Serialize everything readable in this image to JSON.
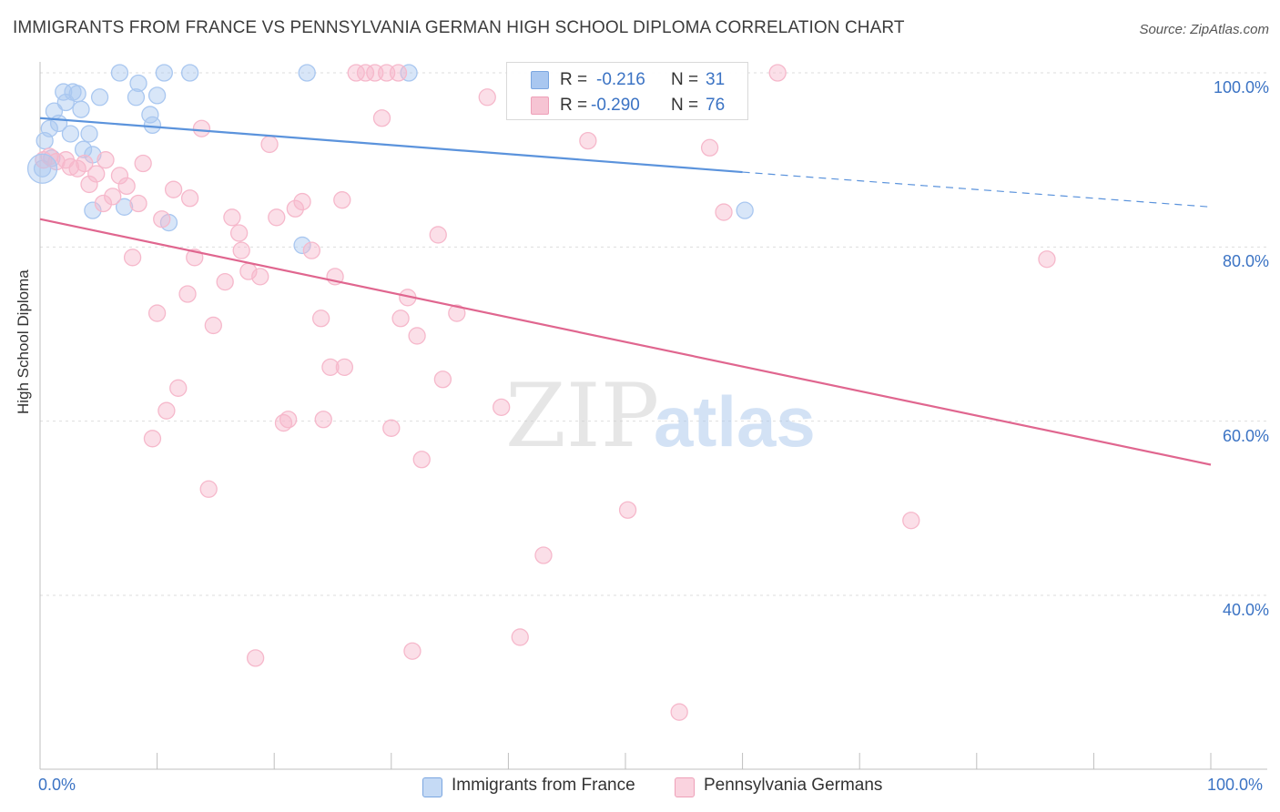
{
  "header": {
    "title": "IMMIGRANTS FROM FRANCE VS PENNSYLVANIA GERMAN HIGH SCHOOL DIPLOMA CORRELATION CHART",
    "source": "Source: ZipAtlas.com"
  },
  "watermark": {
    "zip": "ZIP",
    "atlas": "atlas"
  },
  "stats": {
    "rows": [
      {
        "r_label": "R =",
        "r_value": "-0.216",
        "n_label": "N =",
        "n_value": "31",
        "color": "#a9c7f0"
      },
      {
        "r_label": "R =",
        "r_value": "-0.290",
        "n_label": "N =",
        "n_value": "76",
        "color": "#f6b8cb"
      }
    ]
  },
  "legend": {
    "items": [
      {
        "label": "Immigrants from France",
        "color": "#a9c7f0"
      },
      {
        "label": "Pennsylvania Germans",
        "color": "#f6b8cb"
      }
    ]
  },
  "chart_data": {
    "type": "scatter",
    "title": "IMMIGRANTS FROM FRANCE VS PENNSYLVANIA GERMAN HIGH SCHOOL DIPLOMA CORRELATION CHART",
    "xlabel": "",
    "ylabel": "High School Diploma",
    "xlim": [
      0,
      100
    ],
    "ylim": [
      20,
      102
    ],
    "x_tick_labels": [
      "0.0%",
      "100.0%"
    ],
    "y_ticks": [
      40,
      60,
      80,
      100
    ],
    "y_tick_labels": [
      "40.0%",
      "60.0%",
      "80.0%",
      "100.0%"
    ],
    "grid": true,
    "legend_position": "bottom-center",
    "series": [
      {
        "name": "Immigrants from France",
        "color": "#5b93dc",
        "fill": "#a9c7f0",
        "trend": {
          "x0": 0,
          "y0": 94.8,
          "x1": 60,
          "y1": 88.6,
          "dash_to_x": 100,
          "dash_to_y": 84.6
        },
        "points": [
          [
            0.2,
            89.0
          ],
          [
            0.4,
            92.2
          ],
          [
            0.8,
            93.6
          ],
          [
            1.2,
            95.6
          ],
          [
            1.6,
            94.2
          ],
          [
            2.0,
            97.8
          ],
          [
            2.2,
            96.6
          ],
          [
            2.6,
            93.0
          ],
          [
            2.8,
            97.8
          ],
          [
            3.2,
            97.6
          ],
          [
            3.5,
            95.8
          ],
          [
            3.7,
            91.2
          ],
          [
            4.2,
            93.0
          ],
          [
            4.5,
            90.6
          ],
          [
            4.5,
            84.2
          ],
          [
            5.1,
            97.2
          ],
          [
            6.8,
            100.0
          ],
          [
            7.2,
            84.6
          ],
          [
            8.2,
            97.2
          ],
          [
            8.4,
            98.8
          ],
          [
            9.4,
            95.2
          ],
          [
            9.6,
            94.0
          ],
          [
            10.0,
            97.4
          ],
          [
            10.6,
            100.0
          ],
          [
            11.0,
            82.8
          ],
          [
            12.8,
            100.0
          ],
          [
            22.8,
            100.0
          ],
          [
            22.4,
            80.2
          ],
          [
            31.5,
            100.0
          ],
          [
            60.2,
            84.2
          ],
          [
            1.0,
            90.2
          ]
        ]
      },
      {
        "name": "Pennsylvania Germans",
        "color": "#e0668f",
        "fill": "#f6b8cb",
        "trend": {
          "x0": 0,
          "y0": 83.2,
          "x1": 100,
          "y1": 55.0
        },
        "points": [
          [
            0.3,
            90.0
          ],
          [
            0.8,
            90.4
          ],
          [
            1.4,
            89.8
          ],
          [
            2.2,
            90.0
          ],
          [
            2.6,
            89.2
          ],
          [
            3.2,
            89.0
          ],
          [
            3.8,
            89.6
          ],
          [
            4.2,
            87.2
          ],
          [
            4.8,
            88.4
          ],
          [
            5.4,
            85.0
          ],
          [
            5.6,
            90.0
          ],
          [
            6.2,
            85.8
          ],
          [
            6.8,
            88.2
          ],
          [
            7.4,
            87.0
          ],
          [
            7.9,
            78.8
          ],
          [
            8.4,
            85.0
          ],
          [
            8.8,
            89.6
          ],
          [
            9.6,
            58.0
          ],
          [
            10.0,
            72.4
          ],
          [
            10.4,
            83.2
          ],
          [
            10.8,
            61.2
          ],
          [
            11.4,
            86.6
          ],
          [
            11.8,
            63.8
          ],
          [
            12.6,
            74.6
          ],
          [
            12.8,
            85.6
          ],
          [
            13.2,
            78.8
          ],
          [
            13.8,
            93.6
          ],
          [
            14.4,
            52.2
          ],
          [
            14.8,
            71.0
          ],
          [
            15.8,
            76.0
          ],
          [
            16.4,
            83.4
          ],
          [
            17.0,
            81.6
          ],
          [
            17.2,
            79.6
          ],
          [
            17.8,
            77.2
          ],
          [
            18.4,
            32.8
          ],
          [
            18.8,
            76.6
          ],
          [
            19.6,
            91.8
          ],
          [
            20.2,
            83.4
          ],
          [
            20.8,
            59.8
          ],
          [
            21.2,
            60.2
          ],
          [
            21.8,
            84.4
          ],
          [
            22.4,
            85.2
          ],
          [
            23.2,
            79.6
          ],
          [
            24.0,
            71.8
          ],
          [
            24.2,
            60.2
          ],
          [
            24.8,
            66.2
          ],
          [
            25.2,
            76.6
          ],
          [
            25.8,
            85.4
          ],
          [
            26.0,
            66.2
          ],
          [
            27.0,
            100.0
          ],
          [
            27.8,
            100.0
          ],
          [
            28.6,
            100.0
          ],
          [
            29.2,
            94.8
          ],
          [
            29.6,
            100.0
          ],
          [
            30.0,
            59.2
          ],
          [
            30.6,
            100.0
          ],
          [
            30.8,
            71.8
          ],
          [
            31.4,
            74.2
          ],
          [
            31.8,
            33.6
          ],
          [
            32.2,
            69.8
          ],
          [
            32.6,
            55.6
          ],
          [
            34.0,
            81.4
          ],
          [
            34.4,
            64.8
          ],
          [
            35.6,
            72.4
          ],
          [
            38.2,
            97.2
          ],
          [
            39.4,
            61.6
          ],
          [
            41.0,
            35.2
          ],
          [
            43.0,
            44.6
          ],
          [
            46.8,
            92.2
          ],
          [
            50.2,
            49.8
          ],
          [
            54.6,
            26.6
          ],
          [
            57.2,
            91.4
          ],
          [
            58.4,
            84.0
          ],
          [
            63.0,
            100.0
          ],
          [
            74.4,
            48.6
          ],
          [
            86.0,
            78.6
          ]
        ]
      }
    ]
  }
}
